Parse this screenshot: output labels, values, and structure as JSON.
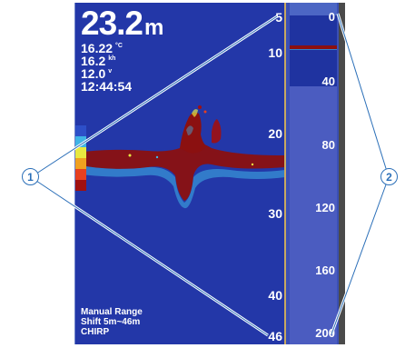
{
  "sonar": {
    "depth_value": "23.2",
    "depth_unit": "m",
    "stats": [
      {
        "value": "16.22",
        "unit": "°C"
      },
      {
        "value": "16.2",
        "unit": "kh"
      },
      {
        "value": "12.0",
        "unit": "v"
      },
      {
        "value": "12:44:54",
        "unit": ""
      }
    ],
    "scale_labels": [
      "5",
      "10",
      "20",
      "30",
      "40",
      "46"
    ],
    "footer": [
      "Manual Range",
      "Shift 5m~46m",
      "CHIRP"
    ],
    "legend_colors": [
      "#2d4fc8",
      "#3fb4e6",
      "#e8e840",
      "#f0a020",
      "#e64020",
      "#a01010"
    ]
  },
  "flasher": {
    "scale_labels": [
      "0",
      "40",
      "80",
      "120",
      "160",
      "200"
    ]
  },
  "callouts": [
    {
      "label": "1"
    },
    {
      "label": "2"
    }
  ],
  "colors": {
    "panel_blue": "#2337a8",
    "callout_blue": "#2b6fb8",
    "echo_dark": "#8b1010"
  }
}
